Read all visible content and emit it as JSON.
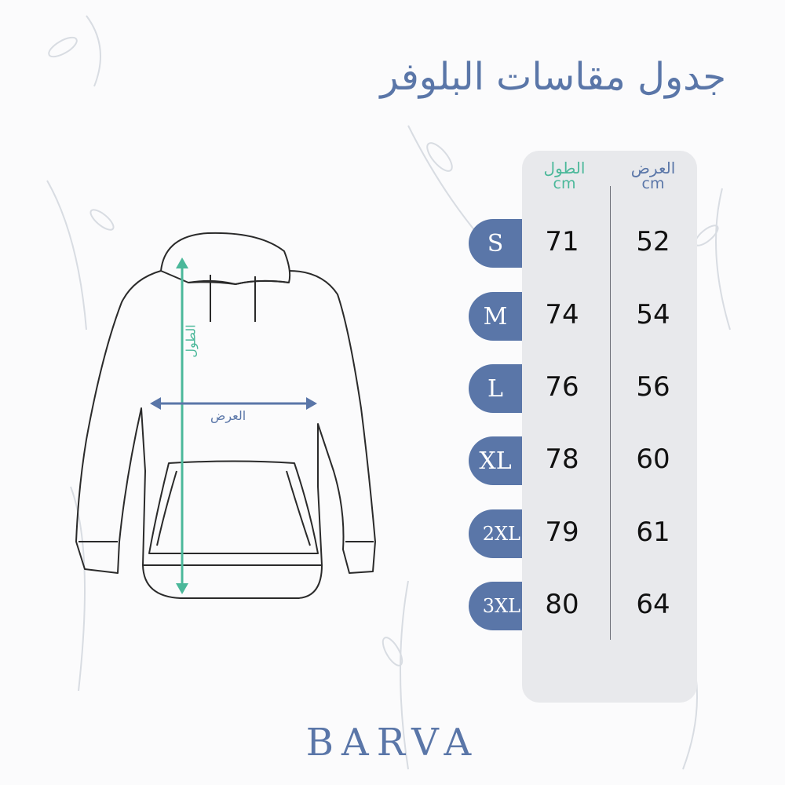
{
  "title": "جدول مقاسات البلوفر",
  "table": {
    "headers": [
      {
        "label": "الطول",
        "unit": "cm",
        "color": "#4bb89a"
      },
      {
        "label": "العرض",
        "unit": "cm",
        "color": "#5a76a8"
      }
    ],
    "rows": [
      {
        "size": "S",
        "length": "71",
        "width": "52"
      },
      {
        "size": "M",
        "length": "74",
        "width": "54"
      },
      {
        "size": "L",
        "length": "76",
        "width": "56"
      },
      {
        "size": "XL",
        "length": "78",
        "width": "60"
      },
      {
        "size": "2XL",
        "length": "79",
        "width": "61"
      },
      {
        "size": "3XL",
        "length": "80",
        "width": "64"
      }
    ]
  },
  "diagram": {
    "length_label": "الطول",
    "width_label": "العرض",
    "length_color": "#4bb89a",
    "width_color": "#5a76a8"
  },
  "brand": "BARVA",
  "colors": {
    "accent": "#5a76a8",
    "panel": "#e8e9ec",
    "teal": "#4bb89a"
  }
}
